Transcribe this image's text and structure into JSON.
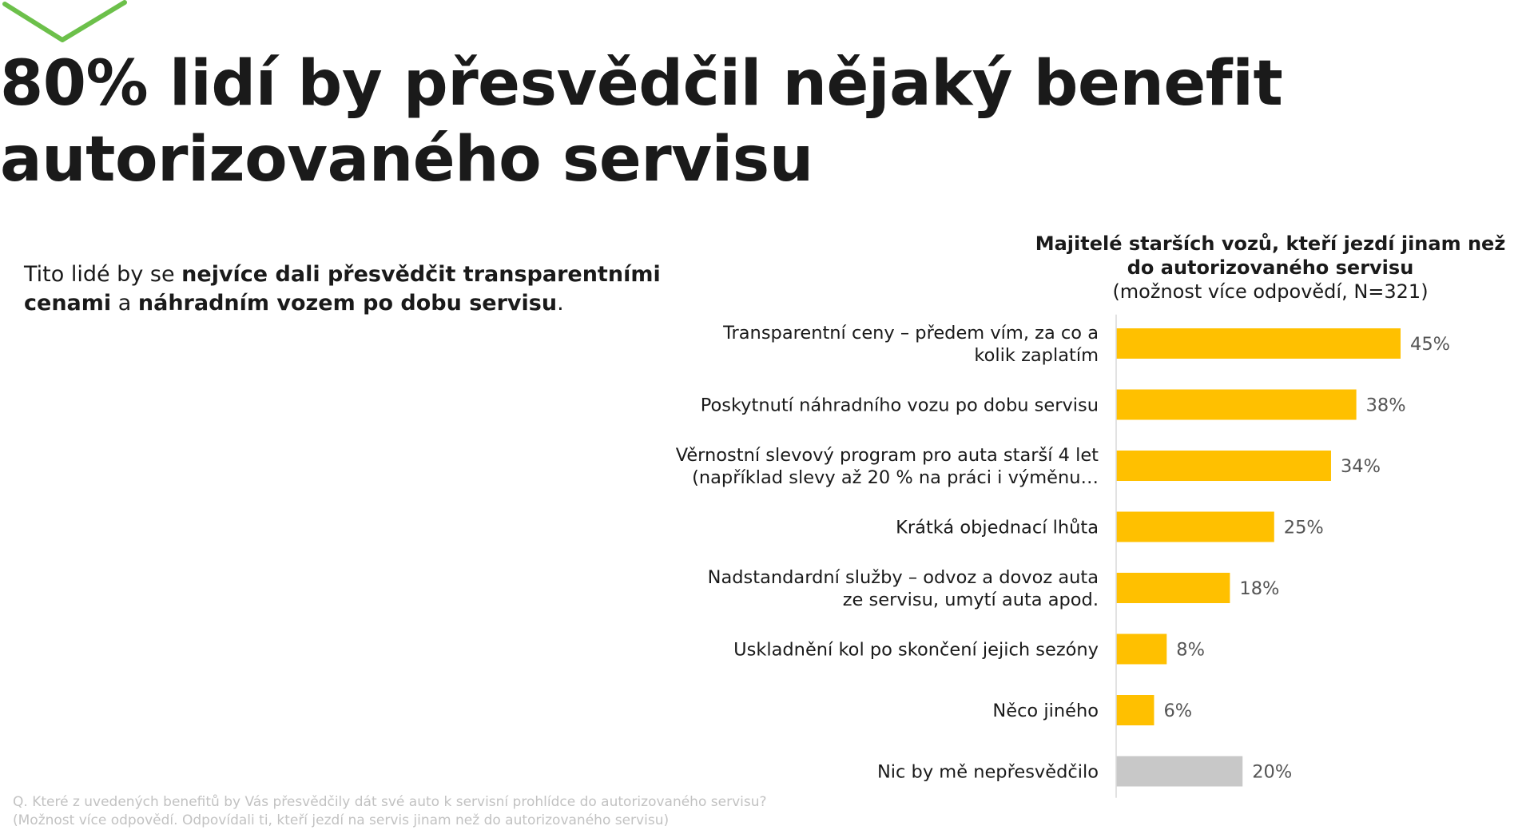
{
  "colors": {
    "accent": "#6cc04a",
    "bar": "#ffc000",
    "bar_other": "#c8c8c8",
    "text": "#1a1a1a"
  },
  "logo": {
    "icon": "check-chevron-icon"
  },
  "page": {
    "title": "80% lidí by přesvědčil nějaký benefit autorizovaného servisu",
    "intro": {
      "part1": "Tito lidé by se ",
      "bold1": "nejvíce dali přesvědčit transparentními cenami",
      "part2": " a ",
      "bold2": "náhradním vozem po dobu servisu",
      "part3": "."
    },
    "footnote_line1": "Q. Které z uvedených benefitů by Vás přesvědčily dát své auto k servisní prohlídce do autorizovaného servisu?",
    "footnote_line2": "(Možnost více odpovědí. Odpovídali ti, kteří jezdí na servis jinam než do autorizovaného servisu)"
  },
  "chart_data": {
    "type": "bar",
    "orientation": "horizontal",
    "title": "Majitelé starších vozů, kteří jezdí jinam než do autorizovaného servisu",
    "subtitle": "(možnost více odpovědí, N=321)",
    "categories": [
      "Transparentní ceny – předem vím, za co a kolik zaplatím",
      "Poskytnutí náhradního vozu po dobu servisu",
      "Věrnostní slevový program pro auta starší 4 let (například slevy až 20 % na práci i výměnu…",
      "Krátká objednací lhůta",
      "Nadstandardní služby – odvoz a dovoz auta ze servisu, umytí auta apod.",
      "Uskladnění kol po skončení jejich sezóny",
      "Něco jiného",
      "Nic by mě nepřesvědčilo"
    ],
    "category_lines": [
      [
        "Transparentní ceny – předem vím, za co a",
        "kolik zaplatím"
      ],
      [
        "Poskytnutí náhradního vozu po dobu servisu"
      ],
      [
        "Věrnostní slevový program pro auta starší 4 let",
        "(například slevy až 20 % na práci i výměnu…"
      ],
      [
        "Krátká objednací lhůta"
      ],
      [
        "Nadstandardní služby – odvoz a dovoz auta",
        "ze servisu, umytí auta apod."
      ],
      [
        "Uskladnění kol po skončení jejich sezóny"
      ],
      [
        "Něco jiného"
      ],
      [
        "Nic by mě nepřesvědčilo"
      ]
    ],
    "values": [
      45,
      38,
      34,
      25,
      18,
      8,
      6,
      20
    ],
    "value_labels": [
      "45%",
      "38%",
      "34%",
      "25%",
      "18%",
      "8%",
      "6%",
      "20%"
    ],
    "highlight": [
      false,
      false,
      false,
      false,
      false,
      false,
      false,
      true
    ],
    "xlim": [
      0,
      45
    ],
    "grid": false,
    "legend": "none"
  }
}
